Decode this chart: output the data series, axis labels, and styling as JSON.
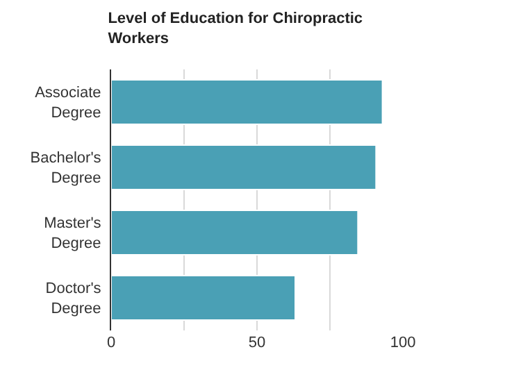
{
  "chart_data": {
    "type": "bar",
    "orientation": "horizontal",
    "title": "Level of Education for Chiropractic Workers",
    "categories": [
      "Associate Degree",
      "Bachelor's Degree",
      "Master's Degree",
      "Doctor's Degree"
    ],
    "values": [
      93,
      90.8,
      84.6,
      63.1
    ],
    "color": "#4aa0b5",
    "xlim": [
      0,
      100
    ],
    "xticks": [
      0,
      {
        "value": 25,
        "label": null
      },
      50,
      {
        "value": 75,
        "label": null
      },
      100
    ],
    "grid": "x"
  }
}
